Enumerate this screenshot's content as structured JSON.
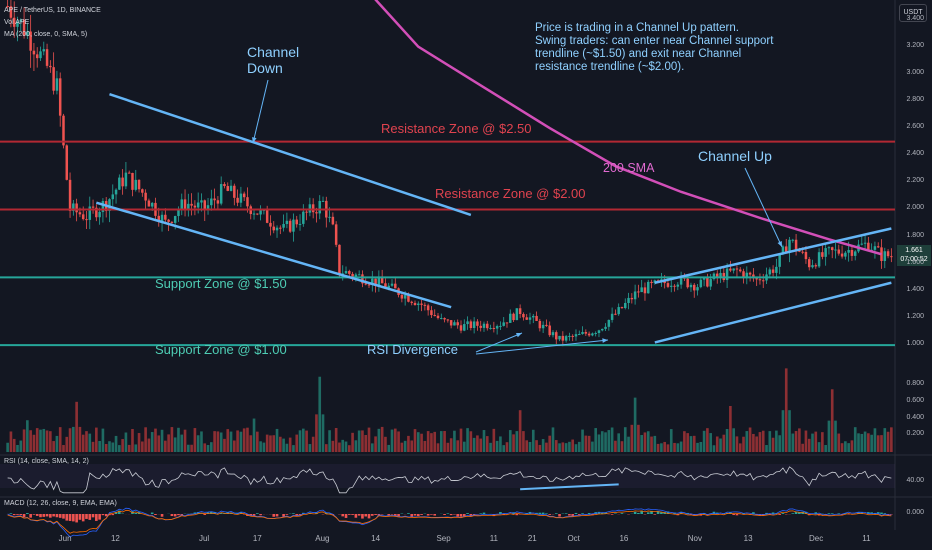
{
  "header": {
    "symbol": "APE / TetherUS, 1D, BINANCE",
    "sub": "Vol APE",
    "ma": "MA (200, close, 0, SMA, 5)",
    "rsi": "RSI (14, close, SMA, 14, 2)",
    "macd": "MACD (12, 26, close, 9, EMA, EMA)"
  },
  "currency_button": "USDT",
  "price_tag": {
    "value": "1.661",
    "countdown": "07:00:52"
  },
  "annotations": {
    "note": [
      "Price is trading in a Channel Up pattern.",
      "Swing traders: can enter near Channel support",
      "trendline (~$1.50) and exit near Channel",
      "resistance trendline (~$2.00)."
    ],
    "channel_down": [
      "Channel",
      "Down"
    ],
    "channel_up": "Channel Up",
    "sma200": "200 SMA",
    "res250": "Resistance Zone @ $2.50",
    "res200": "Resistance Zone @ $2.00",
    "sup150": "Support Zone @ $1.50",
    "sup100": "Support Zone @ $1.00",
    "rsi_div": "RSI Divergence"
  },
  "colors": {
    "bg": "#131722",
    "up": "#26a69a",
    "down": "#ef5350",
    "resistance": "#b22833",
    "support": "#26a69a",
    "sma": "#d24fb8",
    "trend": "#64b5f6",
    "label_blue": "#8fd0ff",
    "label_red": "#e0434f",
    "label_green": "#4ecdb4",
    "label_pink": "#e06ad0"
  },
  "chart_data": {
    "type": "candlestick",
    "x_ticks": [
      "Jun",
      "12",
      "Jul",
      "17",
      "Aug",
      "14",
      "Sep",
      "11",
      "21",
      "Oct",
      "16",
      "Nov",
      "13",
      "Dec",
      "11"
    ],
    "y_ticks": [
      "3.400",
      "3.200",
      "3.000",
      "2.800",
      "2.600",
      "2.400",
      "2.200",
      "2.000",
      "1.800",
      "1.600",
      "1.400",
      "1.200",
      "1.000"
    ],
    "vol_ticks": [
      "0.800",
      "0.600",
      "0.400",
      "0.200"
    ],
    "rsi_ticks": [
      "40.00"
    ],
    "macd_ticks": [
      "0.000"
    ],
    "price_path": [
      [
        0,
        3.5
      ],
      [
        6,
        3.3
      ],
      [
        12,
        3.05
      ],
      [
        15,
        2.9
      ],
      [
        19,
        2.0
      ],
      [
        24,
        1.95
      ],
      [
        30,
        2.05
      ],
      [
        36,
        2.25
      ],
      [
        42,
        2.1
      ],
      [
        48,
        1.9
      ],
      [
        54,
        2.05
      ],
      [
        60,
        2.0
      ],
      [
        66,
        2.15
      ],
      [
        72,
        2.05
      ],
      [
        78,
        1.95
      ],
      [
        84,
        1.85
      ],
      [
        90,
        1.95
      ],
      [
        96,
        2.05
      ],
      [
        99,
        1.85
      ],
      [
        101,
        1.55
      ],
      [
        108,
        1.5
      ],
      [
        114,
        1.45
      ],
      [
        120,
        1.38
      ],
      [
        126,
        1.3
      ],
      [
        132,
        1.18
      ],
      [
        138,
        1.14
      ],
      [
        144,
        1.15
      ],
      [
        150,
        1.16
      ],
      [
        156,
        1.25
      ],
      [
        162,
        1.15
      ],
      [
        168,
        1.04
      ],
      [
        174,
        1.07
      ],
      [
        180,
        1.12
      ],
      [
        186,
        1.25
      ],
      [
        192,
        1.4
      ],
      [
        198,
        1.45
      ],
      [
        204,
        1.48
      ],
      [
        210,
        1.44
      ],
      [
        216,
        1.5
      ],
      [
        222,
        1.55
      ],
      [
        228,
        1.48
      ],
      [
        234,
        1.58
      ],
      [
        238,
        1.78
      ],
      [
        244,
        1.6
      ],
      [
        250,
        1.68
      ],
      [
        256,
        1.7
      ],
      [
        262,
        1.75
      ],
      [
        266,
        1.66
      ]
    ],
    "vol_spikes": [
      [
        6,
        0.38
      ],
      [
        21,
        0.6
      ],
      [
        58,
        0.2
      ],
      [
        75,
        0.4
      ],
      [
        95,
        0.9
      ],
      [
        114,
        0.3
      ],
      [
        138,
        0.22
      ],
      [
        156,
        0.5
      ],
      [
        191,
        0.65
      ],
      [
        220,
        0.55
      ],
      [
        237,
        1.0
      ],
      [
        251,
        0.75
      ],
      [
        263,
        0.2
      ]
    ],
    "levels": [
      2.5,
      2.0,
      1.5,
      1.0
    ],
    "sma200_path": [
      [
        110,
        3.6
      ],
      [
        125,
        3.2
      ],
      [
        145,
        2.9
      ],
      [
        165,
        2.6
      ],
      [
        185,
        2.32
      ],
      [
        205,
        2.13
      ],
      [
        230,
        1.93
      ],
      [
        250,
        1.78
      ],
      [
        266,
        1.67
      ]
    ],
    "channel_down": {
      "upper": [
        [
          31,
          2.85
        ],
        [
          141,
          1.96
        ]
      ],
      "lower": [
        [
          27,
          2.05
        ],
        [
          135,
          1.28
        ]
      ]
    },
    "channel_up": {
      "upper": [
        [
          197,
          1.46
        ],
        [
          269,
          1.86
        ]
      ],
      "lower": [
        [
          197,
          1.02
        ],
        [
          269,
          1.46
        ]
      ]
    },
    "rsi_divergence": {
      "price": [
        [
          143,
          0.88
        ],
        [
          183,
          0.95
        ]
      ],
      "rsi": [
        [
          156,
          28
        ],
        [
          186,
          36
        ]
      ]
    },
    "n_bars": 270
  }
}
